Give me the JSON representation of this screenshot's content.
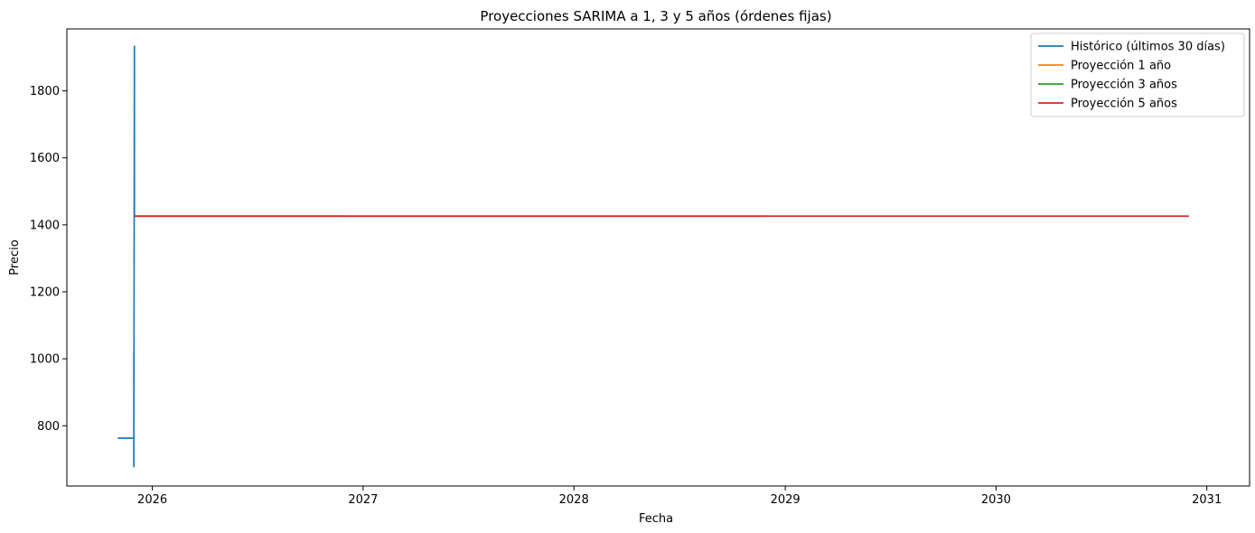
{
  "chart_data": {
    "type": "line",
    "title": "Proyecciones SARIMA a 1, 3 y 5 años (órdenes fijas)",
    "xlabel": "Fecha",
    "ylabel": "Precio",
    "x_type": "date",
    "xlim": [
      "2025-08-06",
      "2031-03-16"
    ],
    "ylim": [
      620,
      1985
    ],
    "xticks": [
      "2026",
      "2027",
      "2028",
      "2029",
      "2030",
      "2031"
    ],
    "yticks": [
      800,
      1000,
      1200,
      1400,
      1600,
      1800
    ],
    "grid": false,
    "legend_position": "top-right",
    "series": [
      {
        "name": "Histórico (últimos 30 días)",
        "color": "#1f77b4",
        "x": [
          "2025-11-02",
          "2025-11-20",
          "2025-11-30",
          "2025-11-30",
          "2025-11-30",
          "2025-11-30",
          "2025-11-30",
          "2025-11-30",
          "2025-12-01",
          "2025-12-01",
          "2025-12-01",
          "2025-12-01"
        ],
        "y": [
          763,
          763,
          763,
          678,
          1020,
          950,
          965,
          710,
          1932,
          1426,
          1933,
          1426
        ]
      },
      {
        "name": "Proyección 1 año",
        "color": "#ff7f0e",
        "x": [
          "2025-12-01",
          "2026-12-01"
        ],
        "y": [
          1426,
          1426
        ]
      },
      {
        "name": "Proyección 3 años",
        "color": "#2ca02c",
        "x": [
          "2025-12-01",
          "2028-12-01"
        ],
        "y": [
          1426,
          1426
        ]
      },
      {
        "name": "Proyección 5 años",
        "color": "#d62728",
        "x": [
          "2025-12-01",
          "2030-12-01"
        ],
        "y": [
          1426,
          1426
        ]
      }
    ]
  }
}
